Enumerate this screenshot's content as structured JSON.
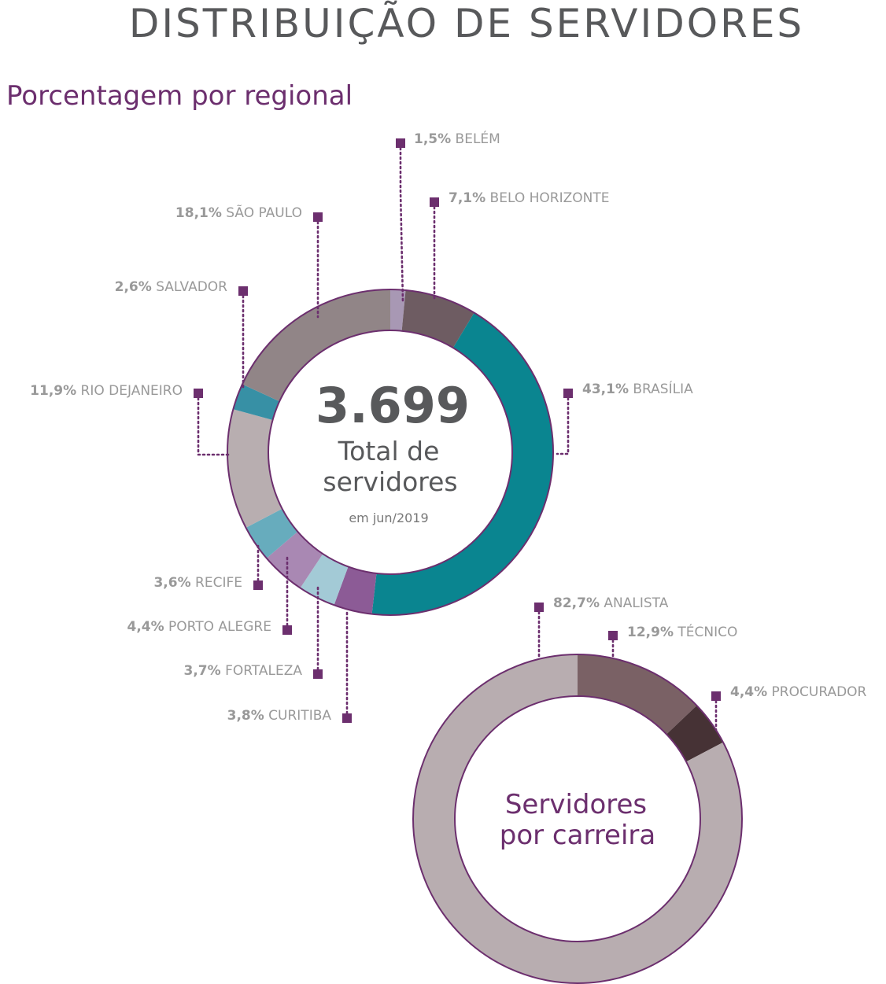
{
  "page": {
    "title": "DISTRIBUIÇÃO DE SERVIDORES",
    "subtitle": "Porcentagem por regional"
  },
  "chart_data": [
    {
      "type": "pie",
      "variant": "donut",
      "center": {
        "value": "3.699",
        "line1": "Total de",
        "line2": "servidores",
        "note": "em jun/2019"
      },
      "slices": [
        {
          "label": "BELÉM",
          "pct_text": "1,5%",
          "value": 1.5,
          "color": "#a898b4"
        },
        {
          "label": "BELO HORIZONTE",
          "pct_text": "7,1%",
          "value": 7.1,
          "color": "#6e5c62"
        },
        {
          "label": "BRASÍLIA",
          "pct_text": "43,1%",
          "value": 43.1,
          "color": "#0a8590"
        },
        {
          "label": "CURITIBA",
          "pct_text": "3,8%",
          "value": 3.8,
          "color": "#8c5b96"
        },
        {
          "label": "FORTALEZA",
          "pct_text": "3,7%",
          "value": 3.7,
          "color": "#a3cad6"
        },
        {
          "label": "PORTO ALEGRE",
          "pct_text": "4,4%",
          "value": 4.4,
          "color": "#a988b3"
        },
        {
          "label": "RECIFE",
          "pct_text": "3,6%",
          "value": 3.6,
          "color": "#67acbd"
        },
        {
          "label": "RIO DEJANEIRO",
          "pct_text": "11,9%",
          "value": 11.9,
          "color": "#b8aeb0"
        },
        {
          "label": "SALVADOR",
          "pct_text": "2,6%",
          "value": 2.6,
          "color": "#3790a5"
        },
        {
          "label": "SÃO PAULO",
          "pct_text": "18,1%",
          "value": 18.1,
          "color": "#918587"
        }
      ]
    },
    {
      "type": "pie",
      "variant": "donut",
      "center": {
        "line1": "Servidores",
        "line2": "por carreira"
      },
      "slices": [
        {
          "label": "TÉCNICO",
          "pct_text": "12,9%",
          "value": 12.9,
          "color": "#7a6165"
        },
        {
          "label": "PROCURADOR",
          "pct_text": "4,4%",
          "value": 4.4,
          "color": "#463235"
        },
        {
          "label": "ANALISTA",
          "pct_text": "82,7%",
          "value": 82.7,
          "color": "#b8adb0"
        }
      ]
    }
  ],
  "colors": {
    "outline": "#6c2f6e",
    "marker": "#6c2f6e",
    "label": "#999999"
  }
}
